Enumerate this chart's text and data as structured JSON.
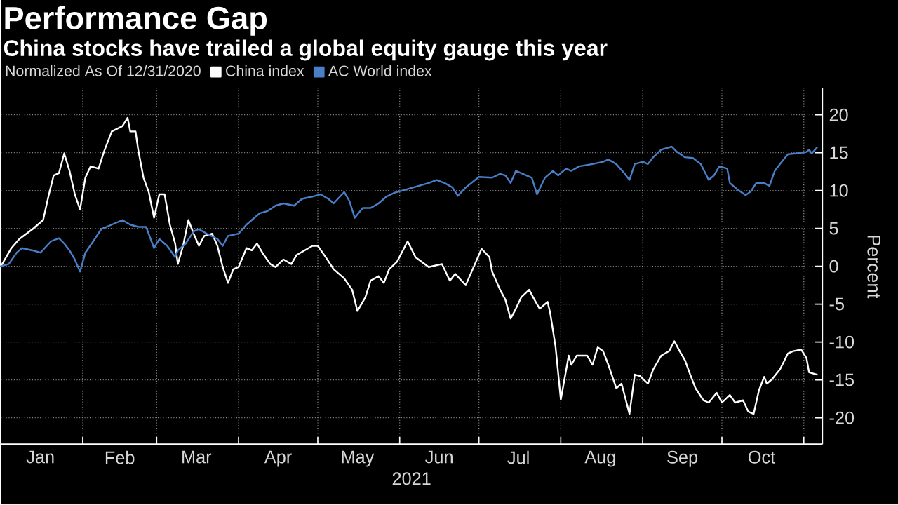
{
  "chart_data": {
    "type": "line",
    "title": "Performance Gap",
    "subtitle": "China stocks have trailed a global equity gauge this year",
    "legend_title": "Normalized As Of 12/31/2020",
    "xlabel": "2021",
    "ylabel": "Percent",
    "legend": "top left",
    "grid": true,
    "marker": "none",
    "line_style": "solid",
    "xlim": [
      "2021-01-01",
      "2021-11-08"
    ],
    "ylim": [
      -23.5,
      23.5
    ],
    "yticks": [
      20,
      15,
      10,
      5,
      0,
      -5,
      -10,
      -15,
      -20
    ],
    "xticks": [
      {
        "value": "2021-02-01",
        "label": null
      },
      {
        "value": "2021-03-01",
        "label": null
      },
      {
        "value": "2021-04-01",
        "label": null
      },
      {
        "value": "2021-05-01",
        "label": null
      },
      {
        "value": "2021-06-01",
        "label": null
      },
      {
        "value": "2021-07-01",
        "label": null
      },
      {
        "value": "2021-08-01",
        "label": null
      },
      {
        "value": "2021-09-01",
        "label": null
      },
      {
        "value": "2021-10-01",
        "label": null
      },
      {
        "value": "2021-11-01",
        "label": null
      },
      {
        "value": "2021-01-16",
        "label": "Jan"
      },
      {
        "value": "2021-02-15",
        "label": "Feb"
      },
      {
        "value": "2021-03-16",
        "label": "Mar"
      },
      {
        "value": "2021-04-16",
        "label": "Apr"
      },
      {
        "value": "2021-05-16",
        "label": "May"
      },
      {
        "value": "2021-06-16",
        "label": "Jun"
      },
      {
        "value": "2021-07-16",
        "label": "Jul"
      },
      {
        "value": "2021-08-16",
        "label": "Aug"
      },
      {
        "value": "2021-09-16",
        "label": "Sep"
      },
      {
        "value": "2021-10-16",
        "label": "Oct"
      }
    ],
    "series": [
      {
        "name": "China index",
        "color": "#ffffff",
        "x": [
          "2021-01-01",
          "2021-01-05",
          "2021-01-08",
          "2021-01-13",
          "2021-01-17",
          "2021-01-19",
          "2021-01-21",
          "2021-01-23",
          "2021-01-25",
          "2021-01-27",
          "2021-01-29",
          "2021-01-31",
          "2021-02-02",
          "2021-02-04",
          "2021-02-07",
          "2021-02-09",
          "2021-02-12",
          "2021-02-16",
          "2021-02-18",
          "2021-02-19",
          "2021-02-21",
          "2021-02-22",
          "2021-02-24",
          "2021-02-26",
          "2021-02-28",
          "2021-03-02",
          "2021-03-04",
          "2021-03-06",
          "2021-03-08",
          "2021-03-09",
          "2021-03-11",
          "2021-03-13",
          "2021-03-15",
          "2021-03-17",
          "2021-03-19",
          "2021-03-22",
          "2021-03-24",
          "2021-03-26",
          "2021-03-28",
          "2021-03-30",
          "2021-04-01",
          "2021-04-04",
          "2021-04-06",
          "2021-04-08",
          "2021-04-10",
          "2021-04-13",
          "2021-04-15",
          "2021-04-18",
          "2021-04-21",
          "2021-04-23",
          "2021-04-26",
          "2021-04-29",
          "2021-05-01",
          "2021-05-04",
          "2021-05-07",
          "2021-05-11",
          "2021-05-14",
          "2021-05-16",
          "2021-05-19",
          "2021-05-21",
          "2021-05-24",
          "2021-05-26",
          "2021-05-28",
          "2021-05-31",
          "2021-06-04",
          "2021-06-07",
          "2021-06-12",
          "2021-06-17",
          "2021-06-20",
          "2021-06-22",
          "2021-06-26",
          "2021-07-02",
          "2021-07-05",
          "2021-07-06",
          "2021-07-09",
          "2021-07-11",
          "2021-07-13",
          "2021-07-15",
          "2021-07-17",
          "2021-07-20",
          "2021-07-22",
          "2021-07-24",
          "2021-07-27",
          "2021-07-28",
          "2021-07-30",
          "2021-08-01",
          "2021-08-04",
          "2021-08-05",
          "2021-08-07",
          "2021-08-11",
          "2021-08-13",
          "2021-08-15",
          "2021-08-17",
          "2021-08-19",
          "2021-08-22",
          "2021-08-24",
          "2021-08-27",
          "2021-08-29",
          "2021-08-31",
          "2021-09-03",
          "2021-09-05",
          "2021-09-08",
          "2021-09-11",
          "2021-09-13",
          "2021-09-15",
          "2021-09-17",
          "2021-09-19",
          "2021-09-21",
          "2021-09-24",
          "2021-09-26",
          "2021-09-29",
          "2021-10-01",
          "2021-10-04",
          "2021-10-06",
          "2021-10-09",
          "2021-10-11",
          "2021-10-13",
          "2021-10-15",
          "2021-10-17",
          "2021-10-18",
          "2021-10-20",
          "2021-10-23",
          "2021-10-26",
          "2021-10-28",
          "2021-10-31",
          "2021-11-02",
          "2021-11-03",
          "2021-11-06"
        ],
        "values": [
          0,
          2.4,
          3.6,
          4.9,
          6.1,
          9.2,
          12.0,
          12.3,
          14.9,
          12.6,
          9.5,
          7.5,
          11.7,
          13.2,
          12.9,
          15.1,
          17.8,
          18.5,
          19.6,
          17.8,
          17.8,
          15.4,
          11.7,
          9.8,
          6.4,
          9.5,
          9.5,
          5.5,
          3.0,
          0.3,
          2.7,
          6.1,
          4.3,
          2.7,
          4.0,
          4.3,
          2.7,
          -0.1,
          -2.2,
          -0.4,
          -0.1,
          2.4,
          2.1,
          3.0,
          1.8,
          0.3,
          -0.1,
          0.9,
          0.3,
          1.5,
          2.1,
          2.7,
          2.7,
          1.2,
          -0.4,
          -1.6,
          -3.1,
          -5.9,
          -4.1,
          -1.9,
          -1.3,
          -2.2,
          -0.4,
          0.6,
          3.3,
          1.2,
          -0.1,
          0.3,
          -1.9,
          -1.0,
          -2.5,
          2.3,
          1.2,
          -0.7,
          -3.1,
          -4.4,
          -6.9,
          -5.6,
          -4.1,
          -3.1,
          -4.4,
          -5.6,
          -4.7,
          -6.2,
          -10.6,
          -17.6,
          -11.8,
          -13.0,
          -11.8,
          -11.8,
          -13.0,
          -10.7,
          -11.2,
          -13.0,
          -16.1,
          -15.5,
          -19.5,
          -14.3,
          -14.5,
          -15.5,
          -13.6,
          -11.8,
          -11.2,
          -9.9,
          -11.2,
          -12.4,
          -14.3,
          -16.1,
          -17.7,
          -18.0,
          -16.7,
          -18.0,
          -17.0,
          -18.0,
          -17.7,
          -19.2,
          -19.5,
          -16.4,
          -14.6,
          -15.5,
          -14.9,
          -13.6,
          -11.5,
          -11.2,
          -11.0,
          -12.1,
          -14.0,
          -14.3
        ]
      },
      {
        "name": "AC World index",
        "color": "#4a7fc8",
        "x": [
          "2021-01-01",
          "2021-01-04",
          "2021-01-07",
          "2021-01-09",
          "2021-01-13",
          "2021-01-16",
          "2021-01-20",
          "2021-01-23",
          "2021-01-25",
          "2021-01-27",
          "2021-01-29",
          "2021-01-31",
          "2021-02-02",
          "2021-02-05",
          "2021-02-08",
          "2021-02-12",
          "2021-02-16",
          "2021-02-19",
          "2021-02-22",
          "2021-02-25",
          "2021-02-28",
          "2021-03-02",
          "2021-03-05",
          "2021-03-08",
          "2021-03-09",
          "2021-03-12",
          "2021-03-15",
          "2021-03-17",
          "2021-03-20",
          "2021-03-24",
          "2021-03-26",
          "2021-03-28",
          "2021-04-01",
          "2021-04-04",
          "2021-04-07",
          "2021-04-09",
          "2021-04-12",
          "2021-04-15",
          "2021-04-18",
          "2021-04-22",
          "2021-04-25",
          "2021-04-29",
          "2021-05-02",
          "2021-05-05",
          "2021-05-07",
          "2021-05-11",
          "2021-05-13",
          "2021-05-15",
          "2021-05-18",
          "2021-05-21",
          "2021-05-24",
          "2021-05-27",
          "2021-05-30",
          "2021-06-03",
          "2021-06-06",
          "2021-06-12",
          "2021-06-15",
          "2021-06-18",
          "2021-06-21",
          "2021-06-23",
          "2021-06-26",
          "2021-07-01",
          "2021-07-06",
          "2021-07-09",
          "2021-07-11",
          "2021-07-13",
          "2021-07-15",
          "2021-07-21",
          "2021-07-23",
          "2021-07-26",
          "2021-07-29",
          "2021-07-31",
          "2021-08-03",
          "2021-08-05",
          "2021-08-08",
          "2021-08-13",
          "2021-08-17",
          "2021-08-19",
          "2021-08-22",
          "2021-08-25",
          "2021-08-27",
          "2021-08-29",
          "2021-09-01",
          "2021-09-03",
          "2021-09-05",
          "2021-09-08",
          "2021-09-12",
          "2021-09-14",
          "2021-09-17",
          "2021-09-20",
          "2021-09-23",
          "2021-09-26",
          "2021-09-28",
          "2021-09-30",
          "2021-10-03",
          "2021-10-04",
          "2021-10-07",
          "2021-10-10",
          "2021-10-12",
          "2021-10-14",
          "2021-10-17",
          "2021-10-19",
          "2021-10-21",
          "2021-10-23",
          "2021-10-26",
          "2021-10-29",
          "2021-11-02",
          "2021-11-03",
          "2021-11-04",
          "2021-11-06"
        ],
        "values": [
          0,
          0.3,
          1.8,
          2.4,
          2.1,
          1.8,
          3.3,
          3.7,
          3.0,
          2.1,
          0.9,
          -0.7,
          1.8,
          3.3,
          4.9,
          5.5,
          6.1,
          5.5,
          5.2,
          5.2,
          2.4,
          3.6,
          2.7,
          1.2,
          2.1,
          3.0,
          4.6,
          4.9,
          4.3,
          3.6,
          2.7,
          4.0,
          4.3,
          5.5,
          6.4,
          7.0,
          7.3,
          8.0,
          8.3,
          8.0,
          8.9,
          9.2,
          9.5,
          8.9,
          8.3,
          9.8,
          8.6,
          6.4,
          7.7,
          7.7,
          8.3,
          9.2,
          9.7,
          10.1,
          10.4,
          11.0,
          11.4,
          11.0,
          10.4,
          9.3,
          10.4,
          11.8,
          11.7,
          12.2,
          12.0,
          11.0,
          12.6,
          11.7,
          9.5,
          11.7,
          12.6,
          12.0,
          12.9,
          12.6,
          13.2,
          13.5,
          13.8,
          14.1,
          13.5,
          12.3,
          11.4,
          13.5,
          13.8,
          13.5,
          14.4,
          15.4,
          15.8,
          15.1,
          14.4,
          14.3,
          13.5,
          11.4,
          12.0,
          13.2,
          12.9,
          11.0,
          10.1,
          9.4,
          9.9,
          11.0,
          11.0,
          10.6,
          12.6,
          13.5,
          14.8,
          14.9,
          15.1,
          15.4,
          14.9,
          15.7
        ]
      }
    ]
  }
}
